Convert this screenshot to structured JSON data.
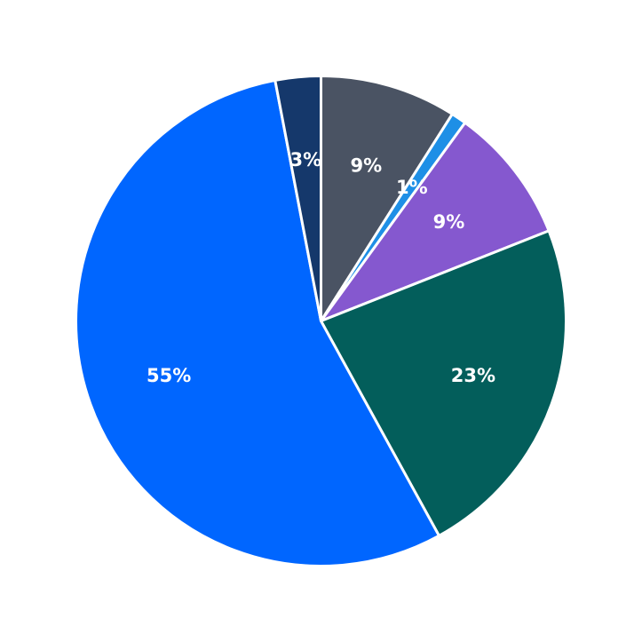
{
  "chart_data": {
    "type": "pie",
    "title": "",
    "start_angle_deg": 90,
    "direction": "clockwise",
    "slices": [
      {
        "value": 9,
        "label": "9%",
        "color": "#4a5363"
      },
      {
        "value": 1,
        "label": "1%",
        "color": "#1e8fe6"
      },
      {
        "value": 9,
        "label": "9%",
        "color": "#8558cf"
      },
      {
        "value": 23,
        "label": "23%",
        "color": "#035e5b"
      },
      {
        "value": 55,
        "label": "55%",
        "color": "#0066ff"
      },
      {
        "value": 3,
        "label": "3%",
        "color": "#15386b"
      }
    ],
    "legend": "none"
  }
}
